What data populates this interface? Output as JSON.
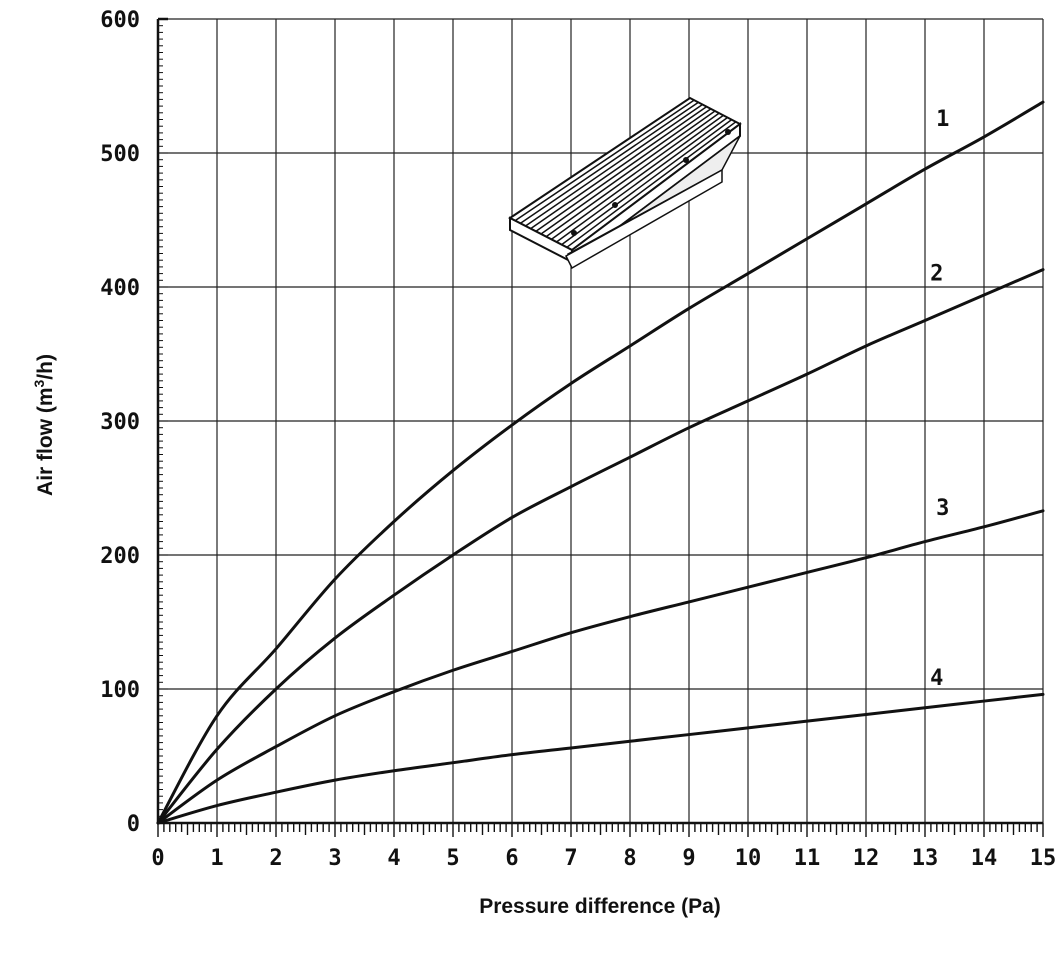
{
  "chart_data": {
    "type": "line",
    "title": "",
    "xlabel": "Pressure difference (Pa)",
    "ylabel_main": "Air flow (m",
    "ylabel_sup": "3",
    "ylabel_tail": "/h)",
    "xlim": [
      0,
      15
    ],
    "ylim": [
      0,
      600
    ],
    "x_ticks": [
      0,
      1,
      2,
      3,
      4,
      5,
      6,
      7,
      8,
      9,
      10,
      11,
      12,
      13,
      14,
      15
    ],
    "x_tick_labels": [
      "0",
      "1",
      "2",
      "3",
      "4",
      "5",
      "6",
      "7",
      "8",
      "9",
      "10",
      "11",
      "12",
      "13",
      "14",
      "15"
    ],
    "y_ticks": [
      0,
      100,
      200,
      300,
      400,
      500,
      600
    ],
    "y_tick_labels": [
      "0",
      "100",
      "200",
      "300",
      "400",
      "500",
      "600"
    ],
    "grid": true,
    "series": [
      {
        "name": "1",
        "x": [
          0,
          1,
          2,
          3,
          4,
          5,
          6,
          7,
          8,
          9,
          10,
          11,
          12,
          13,
          14,
          15
        ],
        "values": [
          0,
          80,
          130,
          182,
          225,
          263,
          297,
          328,
          356,
          384,
          410,
          436,
          462,
          488,
          512,
          538
        ]
      },
      {
        "name": "2",
        "x": [
          0,
          1,
          2,
          3,
          4,
          5,
          6,
          7,
          8,
          9,
          10,
          11,
          12,
          13,
          14,
          15
        ],
        "values": [
          0,
          55,
          100,
          138,
          170,
          200,
          228,
          251,
          273,
          295,
          315,
          335,
          356,
          375,
          394,
          413
        ]
      },
      {
        "name": "3",
        "x": [
          0,
          1,
          2,
          3,
          4,
          5,
          6,
          7,
          8,
          9,
          10,
          11,
          12,
          13,
          14,
          15
        ],
        "values": [
          0,
          32,
          57,
          80,
          98,
          114,
          128,
          142,
          154,
          165,
          176,
          187,
          198,
          210,
          221,
          233
        ]
      },
      {
        "name": "4",
        "x": [
          0,
          1,
          2,
          3,
          4,
          5,
          6,
          7,
          8,
          9,
          10,
          11,
          12,
          13,
          14,
          15
        ],
        "values": [
          0,
          13,
          23,
          32,
          39,
          45,
          51,
          56,
          61,
          66,
          71,
          76,
          81,
          86,
          91,
          96
        ]
      }
    ],
    "curve_label_positions": [
      {
        "name": "1",
        "x": 13.3,
        "y": 520
      },
      {
        "name": "2",
        "x": 13.2,
        "y": 405
      },
      {
        "name": "3",
        "x": 13.3,
        "y": 230
      },
      {
        "name": "4",
        "x": 13.2,
        "y": 103
      }
    ]
  },
  "inset": {
    "icon": "floor-grille-icon"
  }
}
